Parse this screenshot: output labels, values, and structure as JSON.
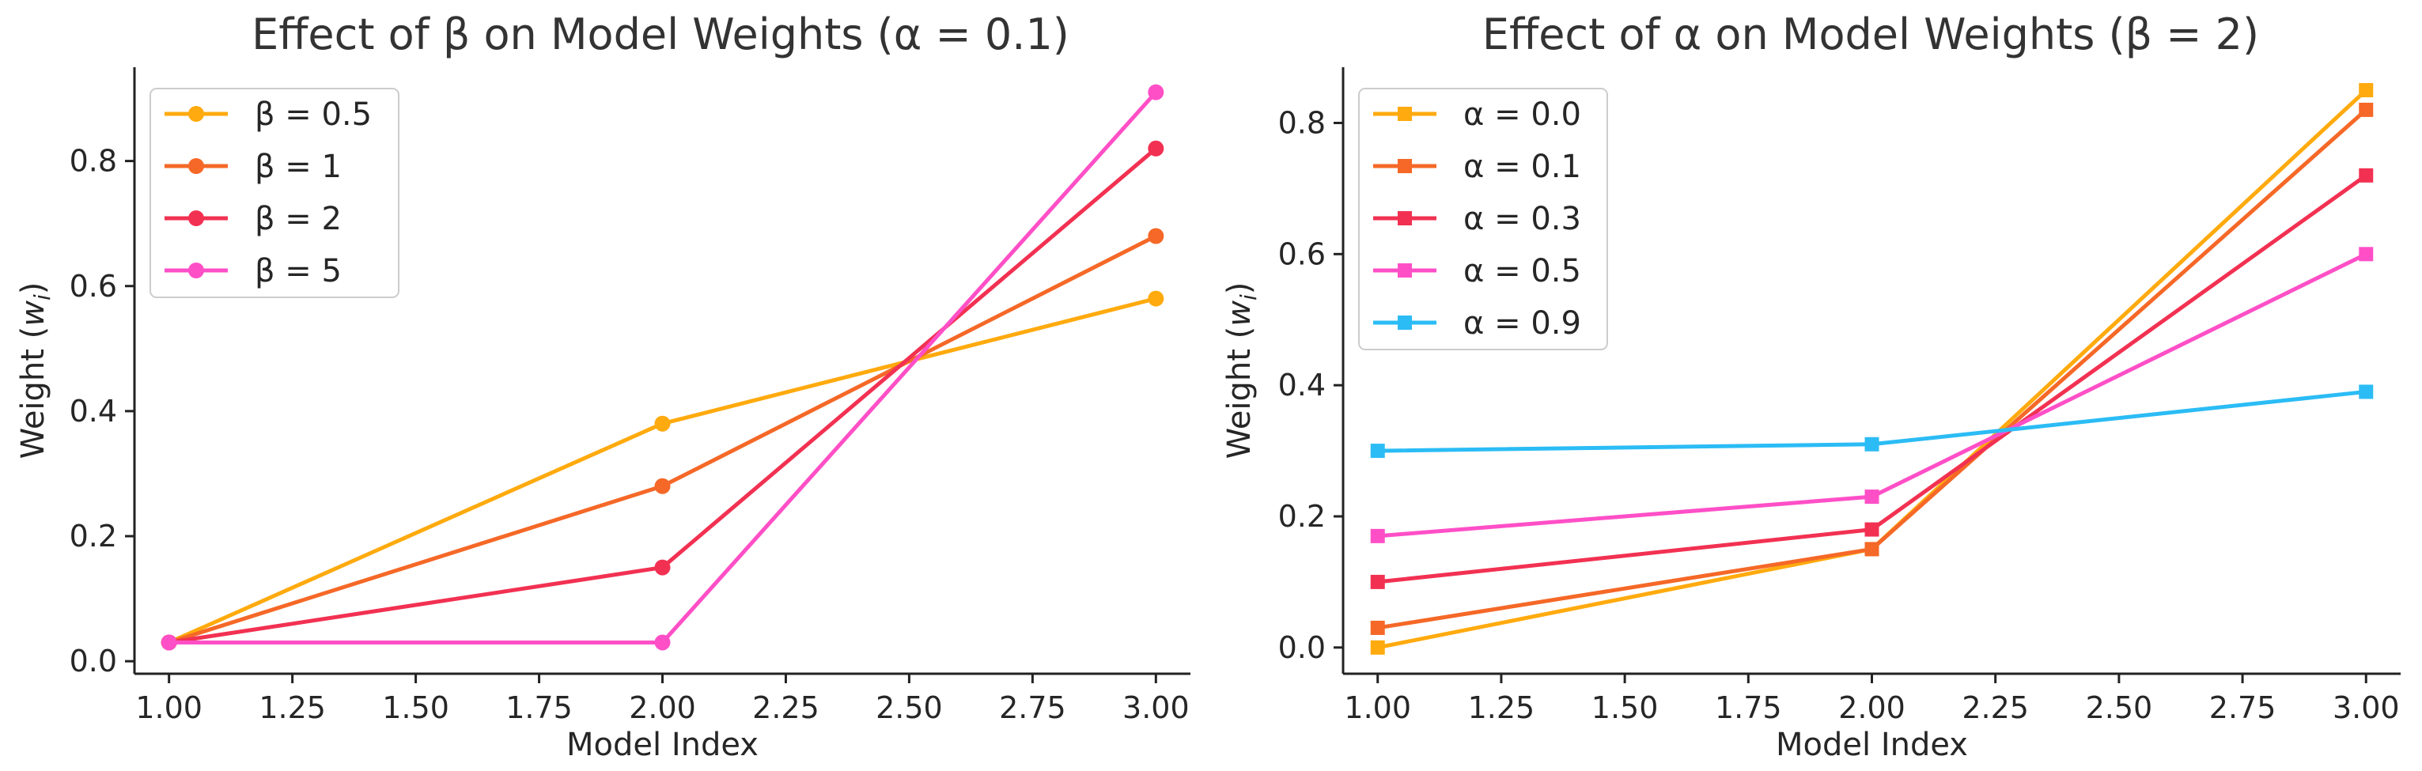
{
  "chart_data": [
    {
      "type": "line",
      "title": "Effect of β on Model Weights (α = 0.1)",
      "xlabel": "Model Index",
      "ylabel_main": "Weight (",
      "ylabel_var": "w",
      "ylabel_sub": "i",
      "ylabel_end": ")",
      "x": [
        1.0,
        2.0,
        3.0
      ],
      "xlim": [
        0.93,
        3.07
      ],
      "ylim": [
        -0.02,
        0.95
      ],
      "xticks": [
        "1.00",
        "1.25",
        "1.50",
        "1.75",
        "2.00",
        "2.25",
        "2.50",
        "2.75",
        "3.00"
      ],
      "xtick_values": [
        1.0,
        1.25,
        1.5,
        1.75,
        2.0,
        2.25,
        2.5,
        2.75,
        3.0
      ],
      "yticks": [
        "0.0",
        "0.2",
        "0.4",
        "0.6",
        "0.8"
      ],
      "ytick_values": [
        0.0,
        0.2,
        0.4,
        0.6,
        0.8
      ],
      "marker": "circle",
      "legend_position": "top-left",
      "grid": false,
      "series": [
        {
          "name": "β = 0.5",
          "color": "#FFAA0E",
          "values": [
            0.03,
            0.38,
            0.58
          ]
        },
        {
          "name": "β = 1",
          "color": "#F56827",
          "values": [
            0.03,
            0.28,
            0.68
          ]
        },
        {
          "name": "β = 2",
          "color": "#F23152",
          "values": [
            0.03,
            0.15,
            0.82
          ]
        },
        {
          "name": "β = 5",
          "color": "#FF4FC7",
          "values": [
            0.03,
            0.03,
            0.91
          ]
        }
      ]
    },
    {
      "type": "line",
      "title": "Effect of α on Model Weights (β = 2)",
      "xlabel": "Model Index",
      "ylabel_main": "Weight (",
      "ylabel_var": "w",
      "ylabel_sub": "i",
      "ylabel_end": ")",
      "x": [
        1.0,
        2.0,
        3.0
      ],
      "xlim": [
        0.93,
        3.07
      ],
      "ylim": [
        -0.04,
        0.885
      ],
      "xticks": [
        "1.00",
        "1.25",
        "1.50",
        "1.75",
        "2.00",
        "2.25",
        "2.50",
        "2.75",
        "3.00"
      ],
      "xtick_values": [
        1.0,
        1.25,
        1.5,
        1.75,
        2.0,
        2.25,
        2.5,
        2.75,
        3.0
      ],
      "yticks": [
        "0.0",
        "0.2",
        "0.4",
        "0.6",
        "0.8"
      ],
      "ytick_values": [
        0.0,
        0.2,
        0.4,
        0.6,
        0.8
      ],
      "marker": "square",
      "legend_position": "top-left",
      "grid": false,
      "series": [
        {
          "name": "α = 0.0",
          "color": "#FFAA0E",
          "values": [
            0.0,
            0.15,
            0.85
          ]
        },
        {
          "name": "α = 0.1",
          "color": "#F56827",
          "values": [
            0.03,
            0.15,
            0.82
          ]
        },
        {
          "name": "α = 0.3",
          "color": "#F23152",
          "values": [
            0.1,
            0.18,
            0.72
          ]
        },
        {
          "name": "α = 0.5",
          "color": "#FF4FC7",
          "values": [
            0.17,
            0.23,
            0.6
          ]
        },
        {
          "name": "α = 0.9",
          "color": "#2BBCF5",
          "values": [
            0.3,
            0.31,
            0.39
          ]
        }
      ]
    }
  ]
}
